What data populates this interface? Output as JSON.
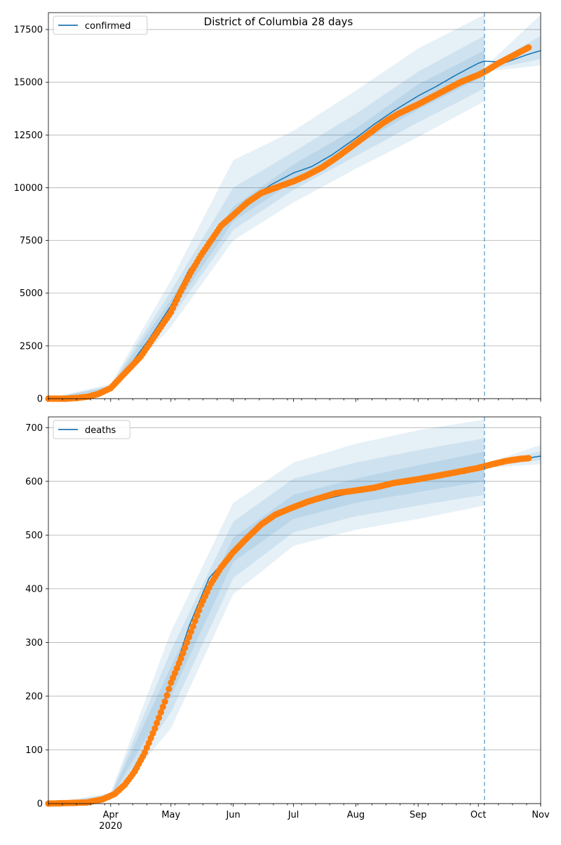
{
  "title": "District of Columbia 28 days",
  "colors": {
    "model_line": "#1f77b4",
    "observed": "#ff7f0e",
    "band": "#1f77b4",
    "cutoff_line": "#1f77b4",
    "grid": "#b0b0b0"
  },
  "x_axis": {
    "start": "2020-03-01",
    "end": "2020-11-01",
    "forecast_start": "2020-10-04",
    "month_ticks": [
      {
        "date": "2020-04-01",
        "label": "Apr"
      },
      {
        "date": "2020-05-01",
        "label": "May"
      },
      {
        "date": "2020-06-01",
        "label": "Jun"
      },
      {
        "date": "2020-07-01",
        "label": "Jul"
      },
      {
        "date": "2020-08-01",
        "label": "Aug"
      },
      {
        "date": "2020-09-01",
        "label": "Sep"
      },
      {
        "date": "2020-10-01",
        "label": "Oct"
      },
      {
        "date": "2020-11-01",
        "label": "Nov"
      }
    ],
    "year_label": "2020"
  },
  "chart_data": [
    {
      "type": "line",
      "legend": "confirmed",
      "legend_position": "top-left",
      "grid": "horizontal",
      "ylim": [
        0,
        18300
      ],
      "yticks": [
        0,
        2500,
        5000,
        7500,
        10000,
        12500,
        15000,
        17500
      ],
      "model": [
        [
          "2020-03-01",
          0
        ],
        [
          "2020-03-15",
          15
        ],
        [
          "2020-03-22",
          90
        ],
        [
          "2020-04-01",
          500
        ],
        [
          "2020-04-10",
          1500
        ],
        [
          "2020-04-20",
          2800
        ],
        [
          "2020-05-01",
          4400
        ],
        [
          "2020-05-10",
          6100
        ],
        [
          "2020-05-20",
          7400
        ],
        [
          "2020-06-01",
          8700
        ],
        [
          "2020-06-10",
          9500
        ],
        [
          "2020-06-20",
          10150
        ],
        [
          "2020-07-01",
          10700
        ],
        [
          "2020-07-10",
          11000
        ],
        [
          "2020-07-20",
          11550
        ],
        [
          "2020-08-01",
          12350
        ],
        [
          "2020-08-10",
          13000
        ],
        [
          "2020-08-20",
          13650
        ],
        [
          "2020-09-01",
          14350
        ],
        [
          "2020-09-10",
          14800
        ],
        [
          "2020-09-20",
          15350
        ],
        [
          "2020-10-01",
          15900
        ],
        [
          "2020-10-04",
          16000
        ],
        [
          "2020-10-15",
          15950
        ],
        [
          "2020-10-25",
          16300
        ],
        [
          "2020-11-01",
          16500
        ]
      ],
      "observed": [
        [
          "2020-03-01",
          0
        ],
        [
          "2020-03-10",
          0
        ],
        [
          "2020-03-16",
          40
        ],
        [
          "2020-03-21",
          100
        ],
        [
          "2020-03-26",
          230
        ],
        [
          "2020-04-01",
          500
        ],
        [
          "2020-04-06",
          1000
        ],
        [
          "2020-04-11",
          1500
        ],
        [
          "2020-04-16",
          2000
        ],
        [
          "2020-04-21",
          2700
        ],
        [
          "2020-04-26",
          3400
        ],
        [
          "2020-05-01",
          4100
        ],
        [
          "2020-05-06",
          5100
        ],
        [
          "2020-05-11",
          6000
        ],
        [
          "2020-05-16",
          6800
        ],
        [
          "2020-05-21",
          7500
        ],
        [
          "2020-05-26",
          8200
        ],
        [
          "2020-06-01",
          8700
        ],
        [
          "2020-06-08",
          9300
        ],
        [
          "2020-06-15",
          9750
        ],
        [
          "2020-06-22",
          10000
        ],
        [
          "2020-07-01",
          10300
        ],
        [
          "2020-07-08",
          10600
        ],
        [
          "2020-07-15",
          10950
        ],
        [
          "2020-07-22",
          11400
        ],
        [
          "2020-08-01",
          12100
        ],
        [
          "2020-08-08",
          12600
        ],
        [
          "2020-08-15",
          13100
        ],
        [
          "2020-08-22",
          13500
        ],
        [
          "2020-09-01",
          13950
        ],
        [
          "2020-09-08",
          14300
        ],
        [
          "2020-09-15",
          14650
        ],
        [
          "2020-09-22",
          15000
        ],
        [
          "2020-10-01",
          15350
        ],
        [
          "2020-10-06",
          15600
        ],
        [
          "2020-10-11",
          15900
        ],
        [
          "2020-10-16",
          16150
        ],
        [
          "2020-10-21",
          16400
        ],
        [
          "2020-10-26",
          16650
        ]
      ],
      "bands": [
        {
          "level": "outer",
          "lower": [
            [
              "2020-03-01",
              0
            ],
            [
              "2020-04-01",
              300
            ],
            [
              "2020-05-01",
              3400
            ],
            [
              "2020-06-01",
              7500
            ],
            [
              "2020-07-01",
              9300
            ],
            [
              "2020-08-01",
              10900
            ],
            [
              "2020-09-01",
              12400
            ],
            [
              "2020-10-04",
              14100
            ]
          ],
          "upper": [
            [
              "2020-03-01",
              0
            ],
            [
              "2020-04-01",
              700
            ],
            [
              "2020-05-01",
              5600
            ],
            [
              "2020-06-01",
              11300
            ],
            [
              "2020-07-01",
              12700
            ],
            [
              "2020-08-01",
              14600
            ],
            [
              "2020-09-01",
              16600
            ],
            [
              "2020-10-04",
              18200
            ]
          ]
        },
        {
          "level": "middle",
          "lower": [
            [
              "2020-03-01",
              0
            ],
            [
              "2020-04-01",
              380
            ],
            [
              "2020-05-01",
              3800
            ],
            [
              "2020-06-01",
              8000
            ],
            [
              "2020-07-01",
              9900
            ],
            [
              "2020-08-01",
              11500
            ],
            [
              "2020-09-01",
              13100
            ],
            [
              "2020-10-04",
              14700
            ]
          ],
          "upper": [
            [
              "2020-03-01",
              0
            ],
            [
              "2020-04-01",
              620
            ],
            [
              "2020-05-01",
              5100
            ],
            [
              "2020-06-01",
              10000
            ],
            [
              "2020-07-01",
              11700
            ],
            [
              "2020-08-01",
              13500
            ],
            [
              "2020-09-01",
              15500
            ],
            [
              "2020-10-04",
              17200
            ]
          ]
        },
        {
          "level": "inner",
          "lower": [
            [
              "2020-03-01",
              0
            ],
            [
              "2020-04-01",
              440
            ],
            [
              "2020-05-01",
              4100
            ],
            [
              "2020-06-01",
              8400
            ],
            [
              "2020-07-01",
              10300
            ],
            [
              "2020-08-01",
              12000
            ],
            [
              "2020-09-01",
              13700
            ],
            [
              "2020-10-04",
              15300
            ]
          ],
          "upper": [
            [
              "2020-03-01",
              0
            ],
            [
              "2020-04-01",
              560
            ],
            [
              "2020-05-01",
              4700
            ],
            [
              "2020-06-01",
              9100
            ],
            [
              "2020-07-01",
              11100
            ],
            [
              "2020-08-01",
              12800
            ],
            [
              "2020-09-01",
              14900
            ],
            [
              "2020-10-04",
              16500
            ]
          ]
        },
        {
          "level": "forecast-outer",
          "lower": [
            [
              "2020-10-04",
              15500
            ],
            [
              "2020-11-01",
              15800
            ]
          ],
          "upper": [
            [
              "2020-10-04",
              15700
            ],
            [
              "2020-11-01",
              18200
            ]
          ]
        },
        {
          "level": "forecast-inner",
          "lower": [
            [
              "2020-10-04",
              15550
            ],
            [
              "2020-11-01",
              16100
            ]
          ],
          "upper": [
            [
              "2020-10-04",
              15650
            ],
            [
              "2020-11-01",
              17200
            ]
          ]
        }
      ]
    },
    {
      "type": "line",
      "legend": "deaths",
      "legend_position": "top-left",
      "grid": "horizontal",
      "ylim": [
        0,
        720
      ],
      "yticks": [
        0,
        100,
        200,
        300,
        400,
        500,
        600,
        700
      ],
      "model": [
        [
          "2020-03-01",
          0
        ],
        [
          "2020-03-20",
          1
        ],
        [
          "2020-04-01",
          12
        ],
        [
          "2020-04-10",
          50
        ],
        [
          "2020-04-20",
          115
        ],
        [
          "2020-05-01",
          225
        ],
        [
          "2020-05-10",
          330
        ],
        [
          "2020-05-20",
          420
        ],
        [
          "2020-06-01",
          470
        ],
        [
          "2020-06-10",
          505
        ],
        [
          "2020-06-20",
          530
        ],
        [
          "2020-07-01",
          550
        ],
        [
          "2020-07-10",
          560
        ],
        [
          "2020-07-20",
          570
        ],
        [
          "2020-08-01",
          580
        ],
        [
          "2020-08-15",
          590
        ],
        [
          "2020-09-01",
          605
        ],
        [
          "2020-09-15",
          615
        ],
        [
          "2020-10-01",
          625
        ],
        [
          "2020-10-04",
          628
        ],
        [
          "2020-10-20",
          640
        ],
        [
          "2020-11-01",
          647
        ]
      ],
      "observed": [
        [
          "2020-03-01",
          0
        ],
        [
          "2020-03-20",
          2
        ],
        [
          "2020-03-28",
          8
        ],
        [
          "2020-04-03",
          18
        ],
        [
          "2020-04-08",
          35
        ],
        [
          "2020-04-13",
          60
        ],
        [
          "2020-04-18",
          95
        ],
        [
          "2020-04-23",
          140
        ],
        [
          "2020-04-28",
          190
        ],
        [
          "2020-05-01",
          225
        ],
        [
          "2020-05-06",
          270
        ],
        [
          "2020-05-11",
          320
        ],
        [
          "2020-05-16",
          370
        ],
        [
          "2020-05-21",
          410
        ],
        [
          "2020-05-26",
          440
        ],
        [
          "2020-06-01",
          468
        ],
        [
          "2020-06-08",
          495
        ],
        [
          "2020-06-15",
          520
        ],
        [
          "2020-06-22",
          538
        ],
        [
          "2020-07-01",
          552
        ],
        [
          "2020-07-08",
          562
        ],
        [
          "2020-07-15",
          570
        ],
        [
          "2020-07-22",
          578
        ],
        [
          "2020-08-01",
          583
        ],
        [
          "2020-08-10",
          588
        ],
        [
          "2020-08-20",
          597
        ],
        [
          "2020-09-01",
          604
        ],
        [
          "2020-09-10",
          610
        ],
        [
          "2020-09-20",
          617
        ],
        [
          "2020-10-01",
          625
        ],
        [
          "2020-10-08",
          632
        ],
        [
          "2020-10-15",
          638
        ],
        [
          "2020-10-22",
          642
        ],
        [
          "2020-10-26",
          643
        ]
      ],
      "bands": [
        {
          "level": "outer",
          "lower": [
            [
              "2020-03-01",
              0
            ],
            [
              "2020-04-01",
              6
            ],
            [
              "2020-05-01",
              140
            ],
            [
              "2020-06-01",
              390
            ],
            [
              "2020-07-01",
              480
            ],
            [
              "2020-08-01",
              510
            ],
            [
              "2020-09-01",
              530
            ],
            [
              "2020-10-04",
              555
            ]
          ],
          "upper": [
            [
              "2020-03-01",
              0
            ],
            [
              "2020-04-01",
              20
            ],
            [
              "2020-05-01",
              320
            ],
            [
              "2020-06-01",
              560
            ],
            [
              "2020-07-01",
              635
            ],
            [
              "2020-08-01",
              670
            ],
            [
              "2020-09-01",
              695
            ],
            [
              "2020-10-04",
              715
            ]
          ]
        },
        {
          "level": "middle",
          "lower": [
            [
              "2020-03-01",
              0
            ],
            [
              "2020-04-01",
              8
            ],
            [
              "2020-05-01",
              170
            ],
            [
              "2020-06-01",
              420
            ],
            [
              "2020-07-01",
              505
            ],
            [
              "2020-08-01",
              535
            ],
            [
              "2020-09-01",
              555
            ],
            [
              "2020-10-04",
              575
            ]
          ],
          "upper": [
            [
              "2020-03-01",
              0
            ],
            [
              "2020-04-01",
              17
            ],
            [
              "2020-05-01",
              285
            ],
            [
              "2020-06-01",
              525
            ],
            [
              "2020-07-01",
              605
            ],
            [
              "2020-08-01",
              635
            ],
            [
              "2020-09-01",
              658
            ],
            [
              "2020-10-04",
              680
            ]
          ]
        },
        {
          "level": "inner",
          "lower": [
            [
              "2020-03-01",
              0
            ],
            [
              "2020-04-01",
              10
            ],
            [
              "2020-05-01",
              200
            ],
            [
              "2020-06-01",
              450
            ],
            [
              "2020-07-01",
              530
            ],
            [
              "2020-08-01",
              560
            ],
            [
              "2020-09-01",
              580
            ],
            [
              "2020-10-04",
              600
            ]
          ],
          "upper": [
            [
              "2020-03-01",
              0
            ],
            [
              "2020-04-01",
              14
            ],
            [
              "2020-05-01",
              255
            ],
            [
              "2020-06-01",
              495
            ],
            [
              "2020-07-01",
              575
            ],
            [
              "2020-08-01",
              605
            ],
            [
              "2020-09-01",
              630
            ],
            [
              "2020-10-04",
              655
            ]
          ]
        },
        {
          "level": "forecast-outer",
          "lower": [
            [
              "2020-10-04",
              625
            ],
            [
              "2020-11-01",
              632
            ]
          ],
          "upper": [
            [
              "2020-10-04",
              632
            ],
            [
              "2020-11-01",
              668
            ]
          ]
        },
        {
          "level": "forecast-inner",
          "lower": [
            [
              "2020-10-04",
              626
            ],
            [
              "2020-11-01",
              640
            ]
          ],
          "upper": [
            [
              "2020-10-04",
              630
            ],
            [
              "2020-11-01",
              656
            ]
          ]
        }
      ]
    }
  ]
}
